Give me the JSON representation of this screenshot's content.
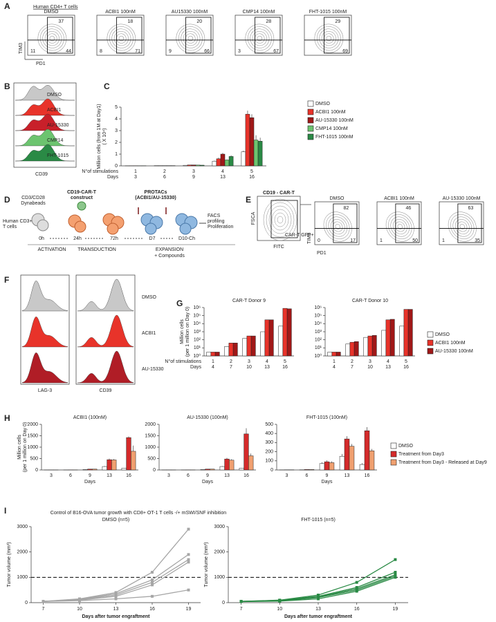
{
  "panel_letters": [
    "A",
    "B",
    "C",
    "D",
    "E",
    "F",
    "G",
    "H",
    "I"
  ],
  "panel_a": {
    "title": "Human CD4+ T cells",
    "y_label": "TIM3",
    "x_label": "PD1",
    "plots": [
      {
        "name": "DMSO",
        "top": 37,
        "bottom_left": 11,
        "bottom_right": 44
      },
      {
        "name": "ACBI1 100nM",
        "top": 18,
        "bottom_left": 8,
        "bottom_right": 71
      },
      {
        "name": "AU15330 100nM",
        "top": 20,
        "bottom_left": 9,
        "bottom_right": 66
      },
      {
        "name": "CMP14 100nM",
        "top": 28,
        "bottom_left": 3,
        "bottom_right": 67
      },
      {
        "name": "FHT-1015 100nM",
        "top": 29,
        "bottom_right": 69
      }
    ]
  },
  "panel_b": {
    "labels": [
      "DMSO",
      "ACBI1",
      "AU-15330",
      "CMP14",
      "FHT-1015"
    ],
    "colors": [
      "#c8c8c8",
      "#e8332a",
      "#c8202a",
      "#6cc46f",
      "#2a8a45"
    ],
    "x_label": "CD39"
  },
  "panel_d": {
    "beads": [
      "CD3/CD28",
      "Dynabeads"
    ],
    "cells": [
      "Human CD3+",
      "T cells"
    ],
    "construct": [
      "CD19-CAR-T",
      "construct"
    ],
    "protacs": [
      "PROTACs",
      "(ACBI1/AU-15330)"
    ],
    "times": [
      "0h",
      "24h",
      "72h",
      "D7",
      "D10-Ch"
    ],
    "readout": [
      "FACS",
      "profiling",
      "Proliferation"
    ],
    "phases": [
      "ACTIVATION",
      "TRANSDUCTION",
      "EXPANSION"
    ],
    "compounds": "+ Compounds"
  },
  "panel_e": {
    "gate_title": "CD19 - CAR-T",
    "gate_y_label": "FSCA",
    "gate_x_label": "FITC",
    "gate_text": "CAR-T GFP+",
    "y_label": "TIM3",
    "x_label": "PD1",
    "plots": [
      {
        "name": "DMSO",
        "top": 82,
        "bottom_left": 0,
        "bottom_right": 17
      },
      {
        "name": "ACBI1 100nM",
        "top": 46,
        "bottom_left": 1,
        "bottom_right": 50
      },
      {
        "name": "AU-15330 100nM",
        "top": 63,
        "bottom_left": 1,
        "bottom_right": 35
      }
    ]
  },
  "panel_f": {
    "markers": [
      "LAG-3",
      "CD39"
    ],
    "labels": [
      "DMSO",
      "ACBI1",
      "AU-15330"
    ],
    "colors": [
      "#c8c8c8",
      "#e8332a",
      "#b01d26"
    ]
  },
  "panel_i_title": "Control of B16-OVA tumor growth with CD8+ OT-1 T cells -/+ mSWI/SNF inhibition",
  "chart_data": [
    {
      "type": "bar",
      "y_label": [
        "Million cells (from 1M at Day1)",
        "( X 10⁴)"
      ],
      "categories": [
        1,
        2,
        3,
        4,
        5
      ],
      "category_label": "N°of stimulations",
      "days": [
        3,
        6,
        9,
        13,
        16
      ],
      "days_label": "Days",
      "ylim": [
        0,
        5
      ],
      "yticks": [
        0,
        1,
        2,
        3,
        4,
        5
      ],
      "series": [
        {
          "name": "DMSO",
          "color": "#ffffff",
          "values": [
            0.01,
            0.02,
            0.05,
            0.4,
            1.2
          ],
          "errors": [
            0,
            0,
            0,
            0.05,
            0.1
          ]
        },
        {
          "name": "ACBI1 100nM",
          "color": "#e8332a",
          "values": [
            0.01,
            0.02,
            0.08,
            0.6,
            4.4
          ],
          "errors": [
            0,
            0,
            0,
            0.1,
            0.3
          ]
        },
        {
          "name": "AU-15330 100nM",
          "color": "#a01818",
          "values": [
            0.01,
            0.02,
            0.08,
            1.0,
            4.1
          ],
          "errors": [
            0,
            0,
            0,
            0.1,
            0.3
          ]
        },
        {
          "name": "CMP14 100nM",
          "color": "#6cc46f",
          "values": [
            0.01,
            0.02,
            0.07,
            0.5,
            2.2
          ],
          "errors": [
            0,
            0,
            0,
            0.05,
            0.4
          ]
        },
        {
          "name": "FHT-1015 100nM",
          "color": "#2a8a45",
          "values": [
            0.01,
            0.02,
            0.06,
            0.8,
            2.1
          ],
          "errors": [
            0,
            0,
            0,
            0.1,
            0.3
          ]
        }
      ]
    },
    {
      "type": "bar",
      "log": true,
      "title": "CAR-T Donor 9",
      "y_label": [
        "Million cells",
        "(per 1 million on Day 0)"
      ],
      "categories": [
        1,
        2,
        3,
        4,
        5
      ],
      "category_label": "N°of stimulations",
      "days": [
        4,
        7,
        10,
        13,
        16
      ],
      "days_label": "Days",
      "ylim": [
        1,
        1000000
      ],
      "yticks": [
        {
          "value": 1,
          "label": "10⁰"
        },
        {
          "value": 10,
          "label": "10¹"
        },
        {
          "value": 100,
          "label": "10²"
        },
        {
          "value": 1000,
          "label": "10³"
        },
        {
          "value": 10000,
          "label": "10⁴"
        },
        {
          "value": 100000,
          "label": "10⁵"
        },
        {
          "value": 1000000,
          "label": "10⁶"
        }
      ],
      "series": [
        {
          "color": "#ffffff",
          "values": [
            3,
            15,
            150,
            1000,
            5000
          ]
        },
        {
          "color": "#e8332a",
          "values": [
            3,
            40,
            300,
            30000,
            800000
          ]
        },
        {
          "color": "#a01818",
          "values": [
            3,
            40,
            300,
            30000,
            700000
          ]
        }
      ]
    },
    {
      "type": "bar",
      "log": true,
      "title": "CAR-T Donor 10",
      "categories": [
        1,
        2,
        3,
        4,
        5
      ],
      "days": [
        4,
        7,
        10,
        13,
        16
      ],
      "ylim": [
        1,
        1000000
      ],
      "yticks": [
        {
          "value": 1,
          "label": "10⁰"
        },
        {
          "value": 10,
          "label": "10¹"
        },
        {
          "value": 100,
          "label": "10²"
        },
        {
          "value": 1000,
          "label": "10³"
        },
        {
          "value": 10000,
          "label": "10⁴"
        },
        {
          "value": 100000,
          "label": "10⁵"
        },
        {
          "value": 1000000,
          "label": "10⁶"
        }
      ],
      "series": [
        {
          "name": "DMSO",
          "color": "#ffffff",
          "values": [
            3,
            30,
            200,
            1500,
            5000
          ]
        },
        {
          "name": "ACBI1 100nM",
          "color": "#e8332a",
          "values": [
            3,
            50,
            300,
            30000,
            600000
          ]
        },
        {
          "name": "AU-15330 100nM",
          "color": "#a01818",
          "values": [
            3,
            60,
            350,
            35000,
            600000
          ]
        }
      ]
    },
    {
      "type": "bar",
      "title": "ACBI1 (100nM)",
      "y_label": [
        "Million cells",
        "(per 1 million on Day 0)"
      ],
      "x_label": "Days",
      "categories": [
        3,
        6,
        9,
        13,
        16
      ],
      "ylim": [
        0,
        2000
      ],
      "yticks": [
        0,
        500,
        1000,
        1500,
        2000
      ],
      "series": [
        {
          "color": "#ffffff",
          "values": [
            1,
            2,
            20,
            150,
            80
          ],
          "errors": [
            0,
            0,
            5,
            20,
            10
          ]
        },
        {
          "color": "#d42a2a",
          "values": [
            1,
            3,
            40,
            450,
            1420
          ],
          "errors": [
            0,
            0,
            5,
            50,
            50
          ]
        },
        {
          "color": "#f0a070",
          "values": [
            1,
            3,
            40,
            440,
            820
          ],
          "errors": [
            0,
            0,
            5,
            40,
            250
          ]
        }
      ]
    },
    {
      "type": "bar",
      "title": "AU-15330 (100nM)",
      "x_label": "Days",
      "categories": [
        3,
        6,
        9,
        13,
        16
      ],
      "ylim": [
        0,
        2000
      ],
      "yticks": [
        0,
        500,
        1000,
        1500,
        2000
      ],
      "series": [
        {
          "color": "#ffffff",
          "values": [
            1,
            2,
            20,
            150,
            80
          ],
          "errors": [
            0,
            0,
            5,
            20,
            10
          ]
        },
        {
          "color": "#d42a2a",
          "values": [
            1,
            3,
            40,
            480,
            1580
          ],
          "errors": [
            0,
            0,
            5,
            50,
            250
          ]
        },
        {
          "color": "#f0a070",
          "values": [
            1,
            3,
            40,
            430,
            620
          ],
          "errors": [
            0,
            0,
            5,
            40,
            100
          ]
        }
      ]
    },
    {
      "type": "bar",
      "title": "FHT-1015 (100nM)",
      "x_label": "Days",
      "categories": [
        3,
        6,
        9,
        13,
        16
      ],
      "ylim": [
        0,
        500
      ],
      "yticks": [
        0,
        100,
        200,
        300,
        400,
        500
      ],
      "series": [
        {
          "name": "DMSO",
          "color": "#ffffff",
          "values": [
            1,
            2,
            70,
            150,
            60
          ],
          "errors": [
            0,
            0,
            15,
            25,
            15
          ]
        },
        {
          "name": "Treatment from Day3",
          "color": "#d42a2a",
          "values": [
            2,
            5,
            90,
            340,
            430
          ],
          "errors": [
            0,
            1,
            15,
            30,
            40
          ]
        },
        {
          "name": "Treatment from Day3 - Released at Day9",
          "color": "#f0a070",
          "values": [
            2,
            5,
            80,
            260,
            210
          ],
          "errors": [
            0,
            1,
            15,
            25,
            20
          ]
        }
      ]
    },
    {
      "type": "line",
      "title": "DMSO (n=5)",
      "y_label": "Tumor volume (mm³)",
      "x_label": "Days after tumor engraftment",
      "x": [
        7,
        10,
        13,
        16,
        19
      ],
      "xlim": [
        6,
        20
      ],
      "xticks": [
        7,
        10,
        13,
        16,
        19
      ],
      "ylim": [
        0,
        3000
      ],
      "yticks": [
        0,
        1000,
        2000,
        3000
      ],
      "threshold": 1000,
      "series": [
        {
          "color": "#a6a6a6",
          "values": [
            50,
            150,
            400,
            1200,
            2900
          ]
        },
        {
          "color": "#a6a6a6",
          "values": [
            50,
            130,
            350,
            900,
            1900
          ]
        },
        {
          "color": "#a6a6a6",
          "values": [
            50,
            120,
            300,
            800,
            1700
          ]
        },
        {
          "color": "#a6a6a6",
          "values": [
            50,
            100,
            250,
            700,
            1600
          ]
        },
        {
          "color": "#a6a6a6",
          "values": [
            50,
            80,
            150,
            250,
            500
          ]
        }
      ]
    },
    {
      "type": "line",
      "title": "FHT-1015 (n=5)",
      "y_label": "Tumor volume (mm³)",
      "x_label": "Days after tumor engraftment",
      "x": [
        7,
        10,
        13,
        16,
        19
      ],
      "xlim": [
        6,
        20
      ],
      "xticks": [
        7,
        10,
        13,
        16,
        19
      ],
      "ylim": [
        0,
        3000
      ],
      "yticks": [
        0,
        1000,
        2000,
        3000
      ],
      "threshold": 1000,
      "series": [
        {
          "color": "#2a8a45",
          "values": [
            50,
            100,
            300,
            800,
            1700
          ]
        },
        {
          "color": "#2a8a45",
          "values": [
            50,
            90,
            250,
            600,
            1200
          ]
        },
        {
          "color": "#2a8a45",
          "values": [
            50,
            80,
            220,
            550,
            1100
          ]
        },
        {
          "color": "#2a8a45",
          "values": [
            50,
            70,
            200,
            500,
            1050
          ]
        },
        {
          "color": "#2a8a45",
          "values": [
            40,
            60,
            150,
            450,
            1000
          ]
        }
      ]
    }
  ]
}
